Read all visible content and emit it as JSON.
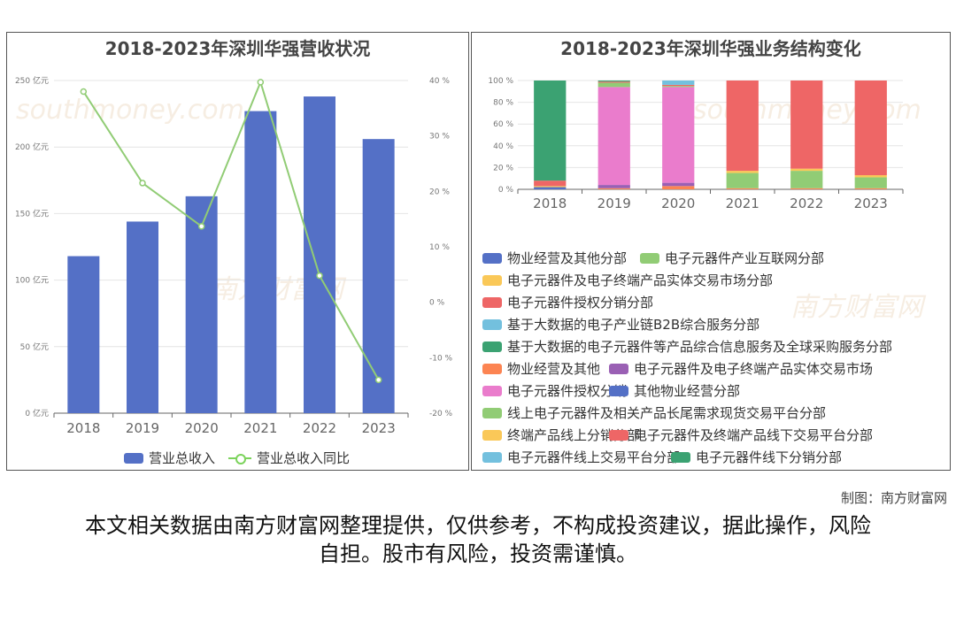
{
  "left_chart": {
    "title": "2018-2023年深圳华强营收状况",
    "legend": {
      "bar_label": "营业总收入",
      "line_label": "营业总收入同比"
    },
    "colors": {
      "bar": "#5470c6",
      "line": "#91cc75"
    }
  },
  "right_chart": {
    "title": "2018-2023年深圳华强业务结构变化",
    "legend": [
      {
        "label": "物业经营及其他分部",
        "color": "#5470c6"
      },
      {
        "label": "电子元器件产业互联网分部",
        "color": "#91cc75"
      },
      {
        "label": "电子元器件及电子终端产品实体交易市场分部",
        "color": "#fac858"
      },
      {
        "label": "电子元器件授权分销分部",
        "color": "#ee6666"
      },
      {
        "label": "基于大数据的电子产业链B2B综合服务分部",
        "color": "#73c0de"
      },
      {
        "label": "基于大数据的电子元器件等产品综合信息服务及全球采购服务分部",
        "color": "#3ba272"
      },
      {
        "label": "物业经营及其他",
        "color": "#fc8452"
      },
      {
        "label": "电子元器件及电子终端产品实体交易市场",
        "color": "#9a60b4"
      },
      {
        "label": "电子元器件授权分销",
        "color": "#ea7ccc"
      },
      {
        "label": "其他物业经营分部",
        "color": "#5470c6"
      },
      {
        "label": "线上电子元器件及相关产品长尾需求现货交易平台分部",
        "color": "#91cc75"
      },
      {
        "label": "终端产品线上分销分部",
        "color": "#fac858"
      },
      {
        "label": "电子元器件及终端产品线下交易平台分部",
        "color": "#ee6666"
      },
      {
        "label": "电子元器件线上交易平台分部",
        "color": "#73c0de"
      },
      {
        "label": "电子元器件线下分销分部",
        "color": "#3ba272"
      }
    ]
  },
  "watermark": {
    "cn": "南方财富网",
    "en": "southmoney.com"
  },
  "credit": "制图：南方财富网",
  "disclaimer": "本文相关数据由南方财富网整理提供，仅供参考，不构成投资建议，据此操作，风险自担。股市有风险，投资需谨慎。",
  "chart_data": [
    {
      "type": "bar",
      "title": "2018-2023年深圳华强营收状况",
      "categories": [
        "2018",
        "2019",
        "2020",
        "2021",
        "2022",
        "2023"
      ],
      "series": [
        {
          "name": "营业总收入",
          "type": "bar",
          "axis": "left",
          "values": [
            118,
            144,
            163,
            227,
            238,
            206
          ]
        },
        {
          "name": "营业总收入同比",
          "type": "line",
          "axis": "right",
          "values": [
            38,
            21.5,
            13.7,
            39.7,
            4.8,
            -14.0
          ]
        }
      ],
      "y_left": {
        "ylim": [
          0,
          250
        ],
        "ticks": [
          0,
          50,
          100,
          150,
          200,
          250
        ],
        "tick_labels": [
          "0 亿元",
          "50 亿元",
          "100 亿元",
          "150 亿元",
          "200 亿元",
          "250 亿元"
        ]
      },
      "y_right": {
        "ylim": [
          -20,
          40
        ],
        "ticks": [
          -20,
          -10,
          0,
          10,
          20,
          30,
          40
        ],
        "tick_labels": [
          "-20 %",
          "-10 %",
          "0 %",
          "10 %",
          "20 %",
          "30 %",
          "40 %"
        ]
      },
      "grid": true,
      "legend_position": "bottom"
    },
    {
      "type": "bar",
      "stacked": true,
      "title": "2018-2023年深圳华强业务结构变化",
      "categories": [
        "2018",
        "2019",
        "2020",
        "2021",
        "2022",
        "2023"
      ],
      "y_axis": {
        "ylim": [
          0,
          100
        ],
        "ticks": [
          0,
          20,
          40,
          60,
          80,
          100
        ],
        "tick_labels": [
          "0 %",
          "20 %",
          "40 %",
          "60 %",
          "80 %",
          "100 %"
        ]
      },
      "series": [
        {
          "name": "物业经营及其他分部",
          "values": [
            2,
            0,
            0,
            0,
            0,
            0
          ]
        },
        {
          "name": "电子元器件产业互联网分部",
          "values": [
            0,
            0,
            0,
            0,
            0,
            0
          ]
        },
        {
          "name": "电子元器件及电子终端产品实体交易市场分部",
          "values": [
            1,
            0,
            0,
            0,
            0,
            0
          ]
        },
        {
          "name": "电子元器件授权分销分部",
          "values": [
            5,
            0,
            0,
            0,
            0,
            0
          ]
        },
        {
          "name": "基于大数据的电子产业链B2B综合服务分部",
          "values": [
            0,
            0,
            0,
            0,
            0,
            0
          ]
        },
        {
          "name": "基于大数据的电子元器件等产品综合信息服务及全球采购服务分部",
          "values": [
            92,
            0,
            0,
            0,
            0,
            0
          ]
        },
        {
          "name": "物业经营及其他",
          "values": [
            0,
            1,
            3,
            1,
            1,
            1
          ]
        },
        {
          "name": "电子元器件及电子终端产品实体交易市场",
          "values": [
            0,
            3,
            3,
            0,
            0,
            0
          ]
        },
        {
          "name": "电子元器件授权分销",
          "values": [
            0,
            90,
            88,
            0,
            0,
            0
          ]
        },
        {
          "name": "其他物业经营分部",
          "values": [
            0,
            0,
            0,
            0,
            0,
            0
          ]
        },
        {
          "name": "线上电子元器件及相关产品长尾需求现货交易平台分部",
          "values": [
            0,
            4,
            1,
            14,
            16,
            10
          ]
        },
        {
          "name": "终端产品线上分销分部",
          "values": [
            0,
            0,
            0,
            2,
            2,
            2
          ]
        },
        {
          "name": "电子元器件及终端产品线下交易平台分部",
          "values": [
            0,
            1,
            1,
            83,
            81,
            87
          ]
        },
        {
          "name": "电子元器件线上交易平台分部",
          "values": [
            0,
            0,
            4,
            0,
            0,
            0
          ]
        },
        {
          "name": "电子元器件线下分销分部",
          "values": [
            0,
            1,
            0,
            0,
            0,
            0
          ]
        }
      ],
      "grid": true,
      "legend_position": "bottom"
    }
  ]
}
